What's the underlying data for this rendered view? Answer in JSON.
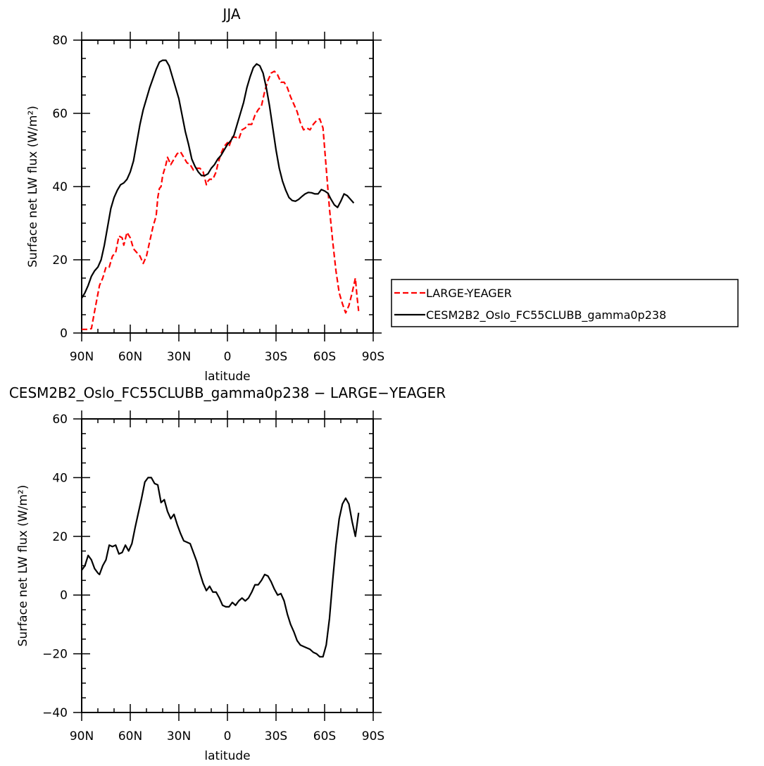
{
  "chart_data": [
    {
      "type": "line",
      "title": "JJA",
      "xlabel": "latitude",
      "ylabel": "Surface net LW flux (W/m²)",
      "xlim": [
        90,
        -90
      ],
      "ylim": [
        0,
        80
      ],
      "x_ticks": [
        {
          "value": 90,
          "label": "90N"
        },
        {
          "value": 60,
          "label": "60N"
        },
        {
          "value": 30,
          "label": "30N"
        },
        {
          "value": 0,
          "label": "0"
        },
        {
          "value": -30,
          "label": "30S"
        },
        {
          "value": -60,
          "label": "60S"
        },
        {
          "value": -90,
          "label": "90S"
        }
      ],
      "y_ticks": [
        0,
        20,
        40,
        60,
        80
      ],
      "legend": "right",
      "series": [
        {
          "name": "LARGE-YEAGER",
          "color": "#ff0000",
          "dash": "dashed",
          "points": [
            [
              90,
              1
            ],
            [
              86,
              1
            ],
            [
              84,
              1.2
            ],
            [
              82,
              6
            ],
            [
              79,
              13
            ],
            [
              77,
              15
            ],
            [
              75,
              18
            ],
            [
              73,
              18
            ],
            [
              71,
              21
            ],
            [
              69,
              22
            ],
            [
              67,
              26.5
            ],
            [
              65,
              26
            ],
            [
              64,
              24
            ],
            [
              62,
              27.5
            ],
            [
              60,
              26
            ],
            [
              58,
              23
            ],
            [
              56,
              22
            ],
            [
              54,
              21
            ],
            [
              52,
              19
            ],
            [
              50,
              21
            ],
            [
              48,
              25
            ],
            [
              46,
              29
            ],
            [
              44,
              32
            ],
            [
              43,
              37
            ],
            [
              42,
              39.5
            ],
            [
              41,
              40
            ],
            [
              40,
              43
            ],
            [
              38,
              46
            ],
            [
              37,
              48
            ],
            [
              35,
              46
            ],
            [
              33,
              47.5
            ],
            [
              31,
              49
            ],
            [
              29,
              49.5
            ],
            [
              27,
              48
            ],
            [
              25,
              46.5
            ],
            [
              23,
              46
            ],
            [
              21,
              44.5
            ],
            [
              19,
              45
            ],
            [
              17,
              45
            ],
            [
              15,
              44
            ],
            [
              13,
              40.5
            ],
            [
              12,
              41.5
            ],
            [
              11,
              42
            ],
            [
              9,
              42
            ],
            [
              7,
              44
            ],
            [
              6,
              46
            ],
            [
              5,
              47.5
            ],
            [
              4,
              49
            ],
            [
              2,
              51
            ],
            [
              0,
              52
            ],
            [
              -1,
              51
            ],
            [
              -3,
              53.5
            ],
            [
              -5,
              53.5
            ],
            [
              -7,
              53
            ],
            [
              -9,
              55.5
            ],
            [
              -11,
              56
            ],
            [
              -13,
              57
            ],
            [
              -15,
              57
            ],
            [
              -17,
              59.5
            ],
            [
              -19,
              61
            ],
            [
              -21,
              62
            ],
            [
              -23,
              66
            ],
            [
              -25,
              69
            ],
            [
              -27,
              71
            ],
            [
              -29,
              71.5
            ],
            [
              -31,
              70.5
            ],
            [
              -33,
              68.5
            ],
            [
              -35,
              68.5
            ],
            [
              -37,
              67
            ],
            [
              -39,
              64.5
            ],
            [
              -41,
              62.5
            ],
            [
              -43,
              60.5
            ],
            [
              -45,
              57.5
            ],
            [
              -47,
              55.5
            ],
            [
              -49,
              56
            ],
            [
              -51,
              55.5
            ],
            [
              -53,
              57
            ],
            [
              -55,
              58
            ],
            [
              -57,
              58.5
            ],
            [
              -59,
              56
            ],
            [
              -61,
              45
            ],
            [
              -63,
              34
            ],
            [
              -65,
              25
            ],
            [
              -67,
              17
            ],
            [
              -69,
              11
            ],
            [
              -71,
              8
            ],
            [
              -73,
              5.5
            ],
            [
              -75,
              7.5
            ],
            [
              -77,
              11
            ],
            [
              -79,
              15
            ],
            [
              -80,
              10
            ],
            [
              -81,
              6
            ]
          ]
        },
        {
          "name": "CESM2B2_Oslo_FC55CLUBB_gamma0p238",
          "color": "#000000",
          "dash": "solid",
          "points": [
            [
              90,
              9.5
            ],
            [
              88,
              11
            ],
            [
              86,
              13
            ],
            [
              84,
              15.5
            ],
            [
              82,
              17
            ],
            [
              80,
              18
            ],
            [
              78,
              20
            ],
            [
              76,
              24
            ],
            [
              74,
              29
            ],
            [
              72,
              34
            ],
            [
              70,
              37
            ],
            [
              68,
              39
            ],
            [
              66,
              40.5
            ],
            [
              64,
              41
            ],
            [
              62,
              42
            ],
            [
              60,
              44
            ],
            [
              58,
              47
            ],
            [
              56,
              52
            ],
            [
              54,
              57
            ],
            [
              52,
              61
            ],
            [
              50,
              64
            ],
            [
              48,
              67
            ],
            [
              46,
              69.5
            ],
            [
              44,
              72
            ],
            [
              42,
              74
            ],
            [
              40,
              74.5
            ],
            [
              38,
              74.5
            ],
            [
              36,
              73
            ],
            [
              34,
              70
            ],
            [
              32,
              67
            ],
            [
              30,
              64
            ],
            [
              28,
              59.5
            ],
            [
              26,
              55
            ],
            [
              24,
              51.5
            ],
            [
              22,
              47.5
            ],
            [
              20,
              45.5
            ],
            [
              18,
              44
            ],
            [
              16,
              43
            ],
            [
              14,
              43
            ],
            [
              12,
              43.5
            ],
            [
              10,
              45
            ],
            [
              8,
              46
            ],
            [
              6,
              47.5
            ],
            [
              4,
              48.5
            ],
            [
              2,
              50
            ],
            [
              0,
              51.5
            ],
            [
              -2,
              52.5
            ],
            [
              -4,
              54
            ],
            [
              -6,
              57
            ],
            [
              -8,
              60
            ],
            [
              -10,
              63
            ],
            [
              -12,
              67
            ],
            [
              -14,
              70
            ],
            [
              -16,
              72.5
            ],
            [
              -18,
              73.5
            ],
            [
              -20,
              73
            ],
            [
              -22,
              71
            ],
            [
              -24,
              67
            ],
            [
              -26,
              62
            ],
            [
              -28,
              56
            ],
            [
              -30,
              50
            ],
            [
              -32,
              45
            ],
            [
              -34,
              41.5
            ],
            [
              -36,
              39
            ],
            [
              -38,
              37
            ],
            [
              -40,
              36.2
            ],
            [
              -42,
              36
            ],
            [
              -44,
              36.5
            ],
            [
              -46,
              37.3
            ],
            [
              -48,
              38
            ],
            [
              -50,
              38.4
            ],
            [
              -52,
              38.3
            ],
            [
              -54,
              38
            ],
            [
              -56,
              38
            ],
            [
              -58,
              39.2
            ],
            [
              -60,
              38.8
            ],
            [
              -62,
              38.2
            ],
            [
              -64,
              36.5
            ],
            [
              -66,
              35
            ],
            [
              -68,
              34.3
            ],
            [
              -70,
              36
            ],
            [
              -72,
              38
            ],
            [
              -74,
              37.5
            ],
            [
              -76,
              36.5
            ],
            [
              -78,
              35.5
            ]
          ]
        }
      ]
    },
    {
      "type": "line",
      "title": "CESM2B2_Oslo_FC55CLUBB_gamma0p238 − LARGE−YEAGER",
      "xlabel": "latitude",
      "ylabel": "Surface net LW flux (W/m²)",
      "xlim": [
        90,
        -90
      ],
      "ylim": [
        -40,
        60
      ],
      "x_ticks": [
        {
          "value": 90,
          "label": "90N"
        },
        {
          "value": 60,
          "label": "60N"
        },
        {
          "value": 30,
          "label": "30N"
        },
        {
          "value": 0,
          "label": "0"
        },
        {
          "value": -30,
          "label": "30S"
        },
        {
          "value": -60,
          "label": "60S"
        },
        {
          "value": -90,
          "label": "90S"
        }
      ],
      "y_ticks": [
        -40,
        -20,
        0,
        20,
        40,
        60
      ],
      "series": [
        {
          "name": "",
          "color": "#000000",
          "dash": "solid",
          "points": [
            [
              90,
              8.5
            ],
            [
              88,
              10
            ],
            [
              86,
              13.5
            ],
            [
              84,
              12
            ],
            [
              82,
              9
            ],
            [
              80,
              7.5
            ],
            [
              79,
              7
            ],
            [
              77,
              10
            ],
            [
              75,
              12
            ],
            [
              73,
              17
            ],
            [
              71,
              16.5
            ],
            [
              69,
              17
            ],
            [
              67,
              14
            ],
            [
              65,
              14.5
            ],
            [
              63,
              17
            ],
            [
              61,
              15
            ],
            [
              59,
              17.5
            ],
            [
              57,
              23
            ],
            [
              55,
              28
            ],
            [
              53,
              33
            ],
            [
              51,
              38.5
            ],
            [
              49,
              40
            ],
            [
              47,
              40
            ],
            [
              45,
              38
            ],
            [
              43,
              37.5
            ],
            [
              41,
              31.5
            ],
            [
              39,
              32.5
            ],
            [
              37,
              28.5
            ],
            [
              35,
              26
            ],
            [
              33,
              27.5
            ],
            [
              31,
              24
            ],
            [
              29,
              21
            ],
            [
              27,
              18.5
            ],
            [
              25,
              18
            ],
            [
              23,
              17.5
            ],
            [
              21,
              14.5
            ],
            [
              19,
              11.5
            ],
            [
              17,
              7.5
            ],
            [
              15,
              4
            ],
            [
              13,
              1.5
            ],
            [
              11,
              3
            ],
            [
              10,
              2
            ],
            [
              9,
              1
            ],
            [
              7,
              1
            ],
            [
              5,
              -1
            ],
            [
              3,
              -3.5
            ],
            [
              1,
              -4
            ],
            [
              -1,
              -4
            ],
            [
              -3,
              -2.5
            ],
            [
              -5,
              -3.5
            ],
            [
              -7,
              -2
            ],
            [
              -9,
              -1
            ],
            [
              -11,
              -2
            ],
            [
              -13,
              -1
            ],
            [
              -15,
              1
            ],
            [
              -17,
              3.5
            ],
            [
              -19,
              3.5
            ],
            [
              -21,
              5
            ],
            [
              -23,
              7
            ],
            [
              -25,
              6.5
            ],
            [
              -27,
              4.5
            ],
            [
              -29,
              2
            ],
            [
              -31,
              0
            ],
            [
              -33,
              0.5
            ],
            [
              -35,
              -2
            ],
            [
              -37,
              -6.5
            ],
            [
              -39,
              -10
            ],
            [
              -41,
              -12.5
            ],
            [
              -43,
              -15.5
            ],
            [
              -45,
              -17
            ],
            [
              -47,
              -17.5
            ],
            [
              -49,
              -18
            ],
            [
              -51,
              -18.5
            ],
            [
              -53,
              -19.5
            ],
            [
              -55,
              -20
            ],
            [
              -57,
              -21
            ],
            [
              -59,
              -21
            ],
            [
              -61,
              -17
            ],
            [
              -63,
              -8
            ],
            [
              -65,
              5
            ],
            [
              -67,
              17
            ],
            [
              -69,
              26
            ],
            [
              -71,
              31
            ],
            [
              -73,
              33
            ],
            [
              -75,
              31
            ],
            [
              -77,
              25
            ],
            [
              -79,
              20
            ],
            [
              -80,
              24
            ],
            [
              -81,
              28
            ]
          ]
        }
      ]
    }
  ]
}
